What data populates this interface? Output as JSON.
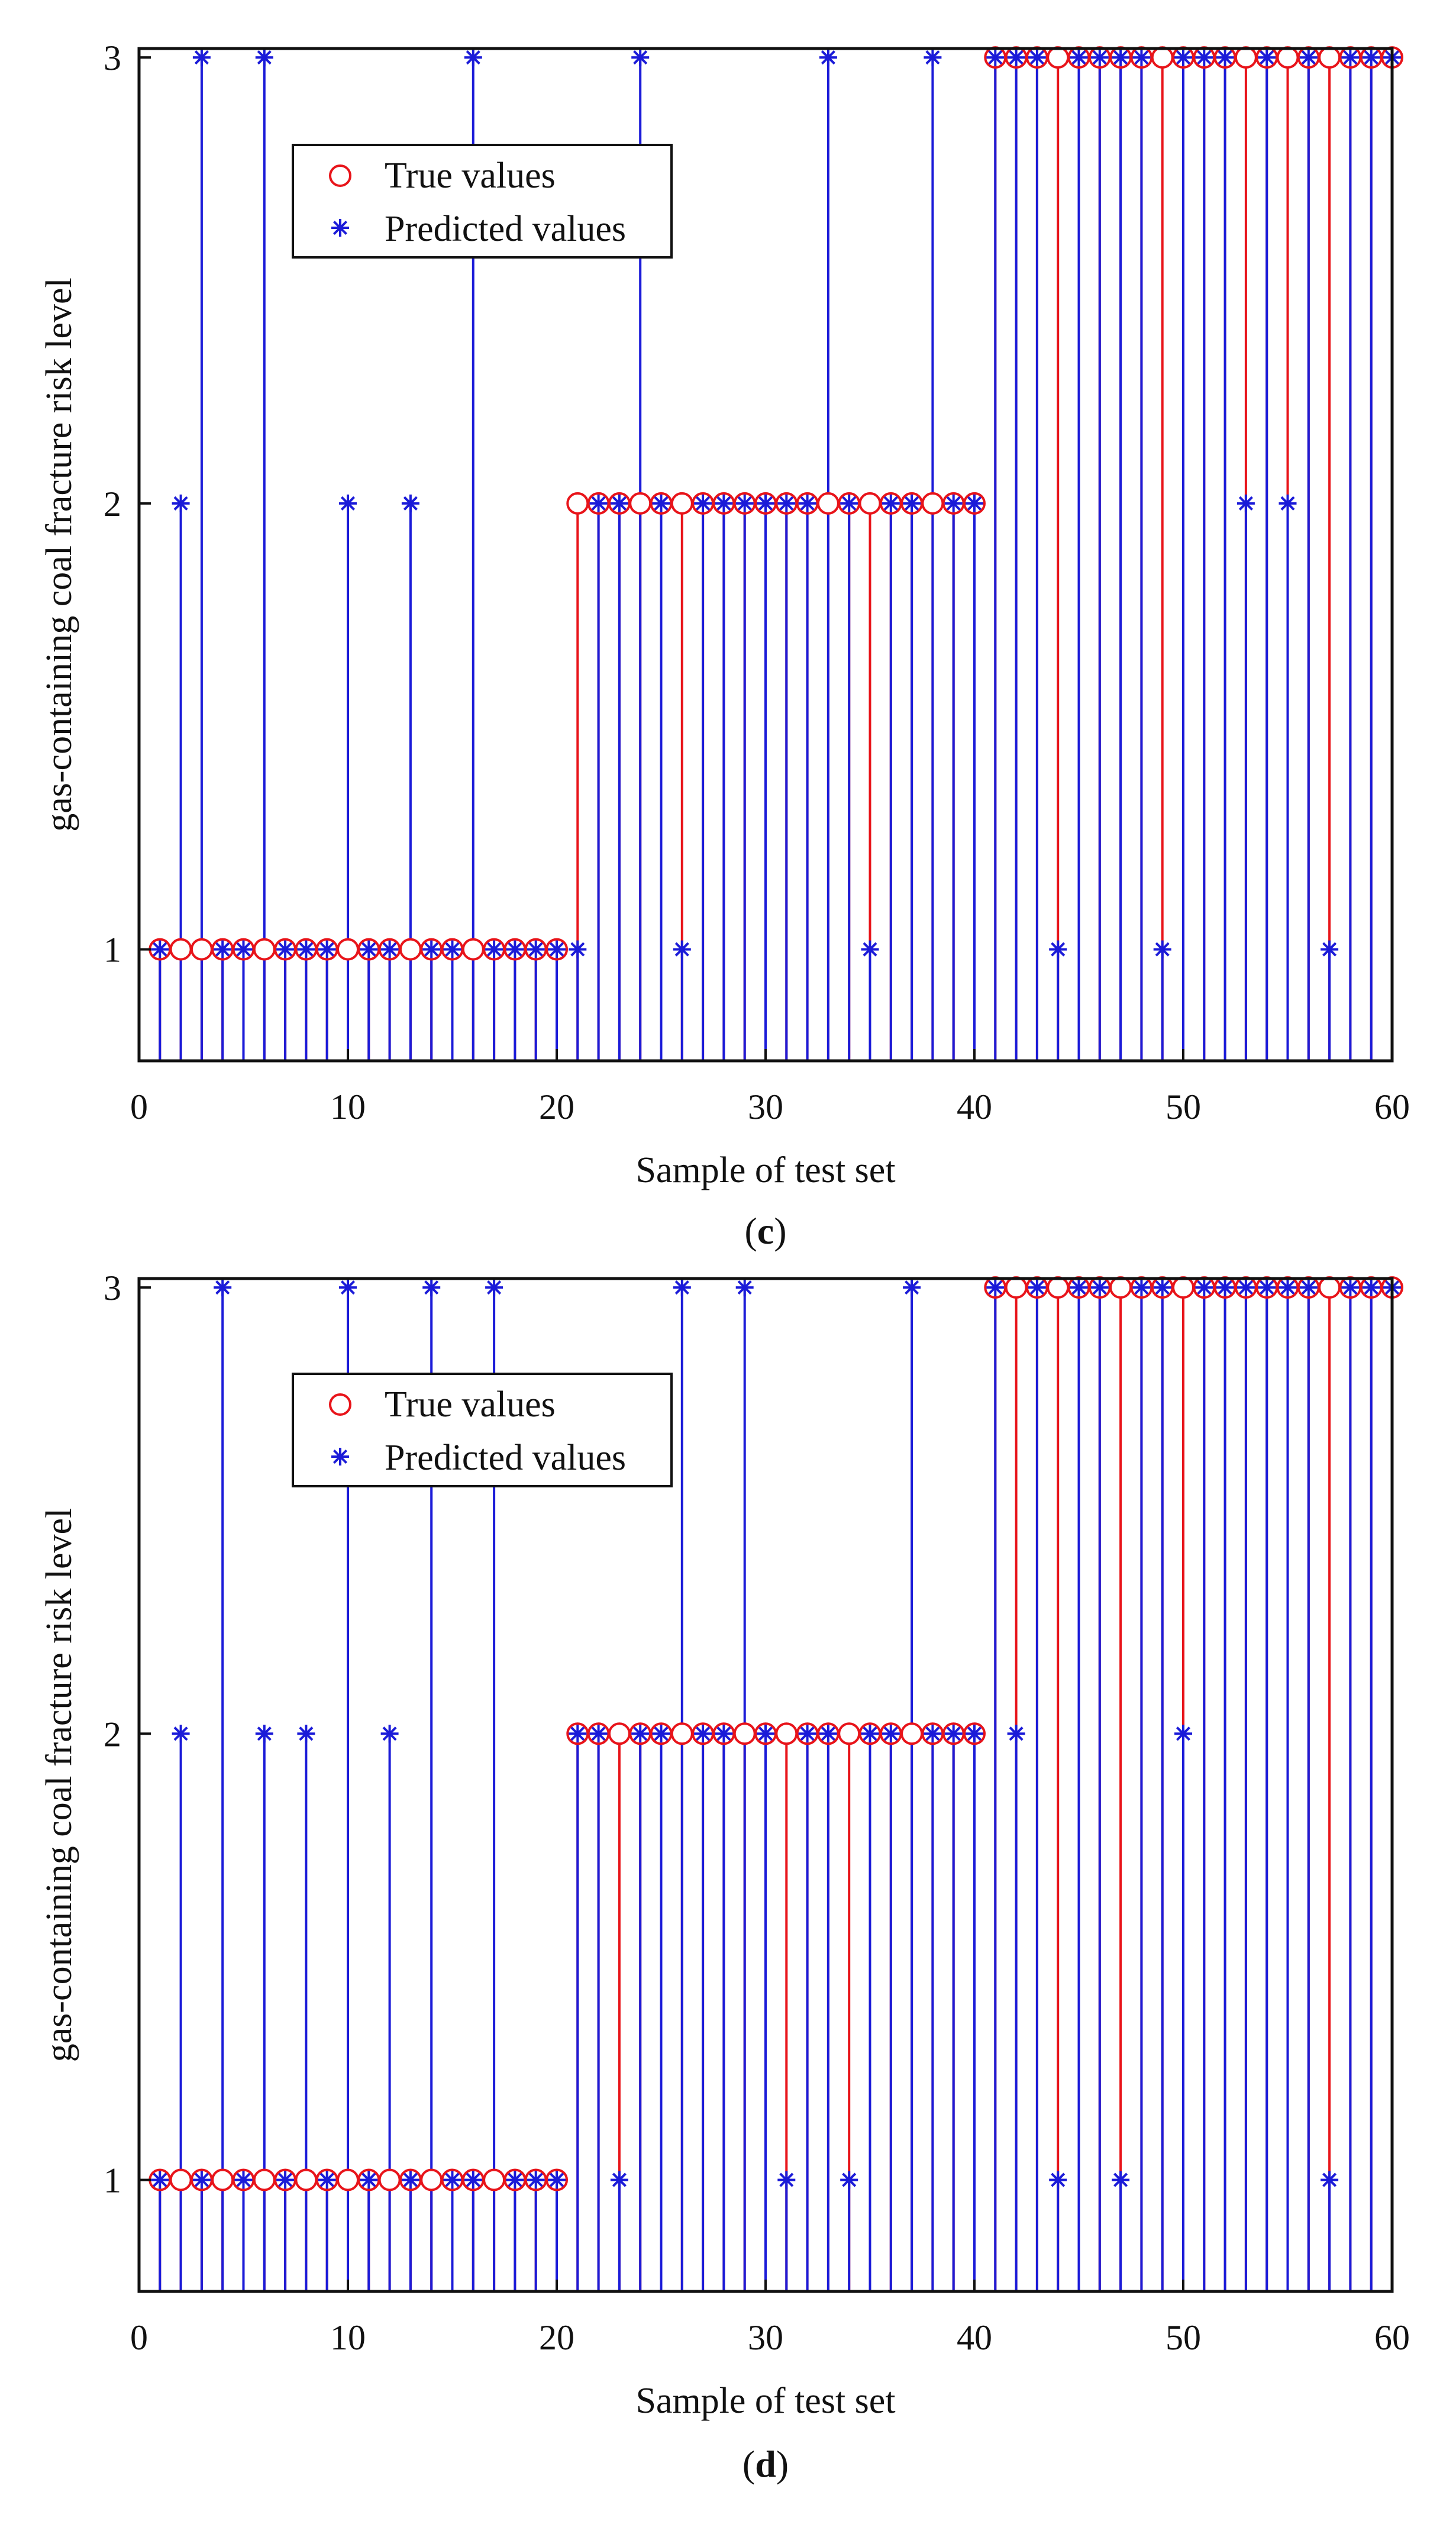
{
  "figure": {
    "caption_open": "(",
    "caption_close": ")"
  },
  "chart_data": [
    {
      "type": "stem",
      "panel": "c",
      "xlabel": "Sample of test set",
      "ylabel": "gas-containing coal fracture risk level",
      "xlim": [
        0,
        60
      ],
      "ylim": [
        0.75,
        3.02
      ],
      "xticks": [
        0,
        10,
        20,
        30,
        40,
        50,
        60
      ],
      "yticks": [
        1,
        2,
        3
      ],
      "legend": {
        "position": "upper-left",
        "entries": [
          "True values",
          "Predicted values"
        ]
      },
      "x": [
        1,
        2,
        3,
        4,
        5,
        6,
        7,
        8,
        9,
        10,
        11,
        12,
        13,
        14,
        15,
        16,
        17,
        18,
        19,
        20,
        21,
        22,
        23,
        24,
        25,
        26,
        27,
        28,
        29,
        30,
        31,
        32,
        33,
        34,
        35,
        36,
        37,
        38,
        39,
        40,
        41,
        42,
        43,
        44,
        45,
        46,
        47,
        48,
        49,
        50,
        51,
        52,
        53,
        54,
        55,
        56,
        57,
        58,
        59,
        60
      ],
      "series": [
        {
          "name": "True values",
          "color": "#e8141a",
          "values": [
            1,
            1,
            1,
            1,
            1,
            1,
            1,
            1,
            1,
            1,
            1,
            1,
            1,
            1,
            1,
            1,
            1,
            1,
            1,
            1,
            2,
            2,
            2,
            2,
            2,
            2,
            2,
            2,
            2,
            2,
            2,
            2,
            2,
            2,
            2,
            2,
            2,
            2,
            2,
            2,
            3,
            3,
            3,
            3,
            3,
            3,
            3,
            3,
            3,
            3,
            3,
            3,
            3,
            3,
            3,
            3,
            3,
            3,
            3,
            3
          ]
        },
        {
          "name": "Predicted values",
          "color": "#1b1bd8",
          "values": [
            1,
            2,
            3,
            1,
            1,
            3,
            1,
            1,
            1,
            2,
            1,
            1,
            2,
            1,
            1,
            3,
            1,
            1,
            1,
            1,
            1,
            2,
            2,
            3,
            2,
            1,
            2,
            2,
            2,
            2,
            2,
            2,
            3,
            2,
            1,
            2,
            2,
            3,
            2,
            2,
            3,
            3,
            3,
            1,
            3,
            3,
            3,
            3,
            1,
            3,
            3,
            3,
            2,
            3,
            2,
            3,
            1,
            3,
            3,
            3
          ]
        }
      ]
    },
    {
      "type": "stem",
      "panel": "d",
      "xlabel": "Sample of test set",
      "ylabel": "gas-containing coal fracture risk level",
      "xlim": [
        0,
        60
      ],
      "ylim": [
        0.75,
        3.02
      ],
      "xticks": [
        0,
        10,
        20,
        30,
        40,
        50,
        60
      ],
      "yticks": [
        1,
        2,
        3
      ],
      "legend": {
        "position": "upper-left",
        "entries": [
          "True values",
          "Predicted values"
        ]
      },
      "x": [
        1,
        2,
        3,
        4,
        5,
        6,
        7,
        8,
        9,
        10,
        11,
        12,
        13,
        14,
        15,
        16,
        17,
        18,
        19,
        20,
        21,
        22,
        23,
        24,
        25,
        26,
        27,
        28,
        29,
        30,
        31,
        32,
        33,
        34,
        35,
        36,
        37,
        38,
        39,
        40,
        41,
        42,
        43,
        44,
        45,
        46,
        47,
        48,
        49,
        50,
        51,
        52,
        53,
        54,
        55,
        56,
        57,
        58,
        59,
        60
      ],
      "series": [
        {
          "name": "True values",
          "color": "#e8141a",
          "values": [
            1,
            1,
            1,
            1,
            1,
            1,
            1,
            1,
            1,
            1,
            1,
            1,
            1,
            1,
            1,
            1,
            1,
            1,
            1,
            1,
            2,
            2,
            2,
            2,
            2,
            2,
            2,
            2,
            2,
            2,
            2,
            2,
            2,
            2,
            2,
            2,
            2,
            2,
            2,
            2,
            3,
            3,
            3,
            3,
            3,
            3,
            3,
            3,
            3,
            3,
            3,
            3,
            3,
            3,
            3,
            3,
            3,
            3,
            3,
            3
          ]
        },
        {
          "name": "Predicted values",
          "color": "#1b1bd8",
          "values": [
            1,
            2,
            1,
            3,
            1,
            2,
            1,
            2,
            1,
            3,
            1,
            2,
            1,
            3,
            1,
            1,
            3,
            1,
            1,
            1,
            2,
            2,
            1,
            2,
            2,
            3,
            2,
            2,
            3,
            2,
            1,
            2,
            2,
            1,
            2,
            2,
            3,
            2,
            2,
            2,
            3,
            2,
            3,
            1,
            3,
            3,
            1,
            3,
            3,
            2,
            3,
            3,
            3,
            3,
            3,
            3,
            1,
            3,
            3,
            3
          ]
        }
      ]
    }
  ]
}
